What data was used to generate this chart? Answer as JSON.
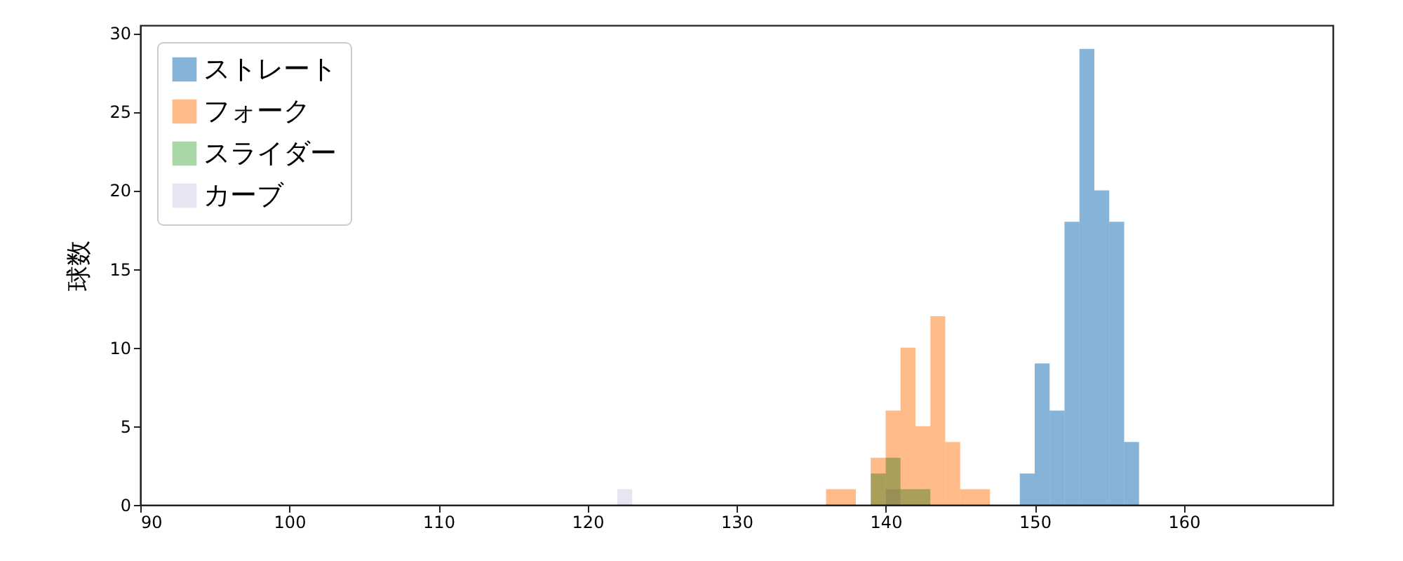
{
  "chart_data": {
    "type": "histogram",
    "ylabel": "球数",
    "xlim": [
      90,
      170
    ],
    "xticks": [
      90,
      100,
      110,
      120,
      130,
      140,
      150,
      160
    ],
    "ylim": [
      0,
      30.5
    ],
    "yticks": [
      0,
      5,
      10,
      15,
      20,
      25,
      30
    ],
    "legend": "top left",
    "bins": [
      122,
      123,
      124,
      125,
      126,
      127,
      128,
      129,
      130,
      131,
      132,
      133,
      134,
      135,
      136,
      137,
      138,
      139,
      140,
      141,
      142,
      143,
      144,
      145,
      146,
      147,
      148,
      149,
      150,
      151,
      152,
      153,
      154,
      155,
      156,
      157
    ],
    "series": [
      {
        "name": "ストレート",
        "color": "#86b4d8",
        "values": [
          0,
          0,
          0,
          0,
          0,
          0,
          0,
          0,
          0,
          0,
          0,
          0,
          0,
          0,
          0,
          0,
          0,
          0,
          0,
          0,
          0,
          0,
          0,
          0,
          0,
          0,
          0,
          2,
          9,
          6,
          18,
          29,
          20,
          18,
          4
        ]
      },
      {
        "name": "フォーク",
        "color": "#ffbc8a",
        "values": [
          0,
          0,
          0,
          0,
          0,
          0,
          0,
          0,
          0,
          0,
          0,
          0,
          0,
          0,
          1,
          1,
          0,
          3,
          6,
          10,
          5,
          12,
          4,
          1,
          1,
          0,
          0,
          0,
          0,
          0,
          0,
          0,
          0,
          0,
          0
        ]
      },
      {
        "name": "スライダー",
        "color": "#a9d8a6",
        "values": [
          0,
          0,
          0,
          0,
          0,
          0,
          0,
          0,
          0,
          0,
          0,
          0,
          0,
          0,
          0,
          0,
          0,
          2,
          3,
          1,
          1,
          0,
          0,
          0,
          0,
          0,
          0,
          0,
          0,
          0,
          0,
          0,
          0,
          0,
          0
        ]
      },
      {
        "name": "カーブ",
        "color": "#e6e6f2",
        "values": [
          1,
          0,
          0,
          0,
          0,
          0,
          0,
          0,
          0,
          0,
          0,
          0,
          0,
          0,
          0,
          0,
          0,
          0,
          1,
          0,
          0,
          0,
          0,
          0,
          0,
          0,
          0,
          0,
          0,
          0,
          0,
          0,
          0,
          0,
          0
        ]
      }
    ]
  }
}
